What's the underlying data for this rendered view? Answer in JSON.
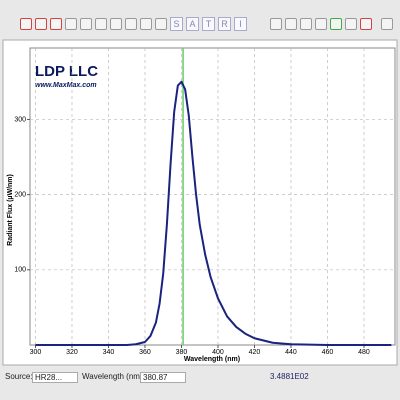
{
  "toolbar": {
    "letters": [
      "S",
      "A",
      "T",
      "R",
      "I"
    ]
  },
  "chart_data": {
    "type": "line",
    "logo": "LDP LLC",
    "logo_url": "www.MaxMax.com",
    "x_label": "Wavelength (nm)",
    "y_label": "Radiant Flux (µW/nm)",
    "xlim": [
      297,
      497
    ],
    "ylim": [
      0,
      395
    ],
    "xticks": [
      300,
      320,
      340,
      360,
      380,
      400,
      420,
      440,
      460,
      480
    ],
    "yticks": [
      100,
      200,
      300
    ],
    "grid": true,
    "cursor_x": 380.87,
    "cursor_color": "#66cc66",
    "series": [
      {
        "color": "#1a237e",
        "x": [
          300,
          320,
          340,
          350,
          355,
          360,
          363,
          366,
          368,
          370,
          372,
          374,
          376,
          378,
          380,
          382,
          384,
          386,
          388,
          390,
          393,
          396,
          400,
          405,
          410,
          415,
          420,
          430,
          440,
          460,
          480,
          495
        ],
        "values": [
          0,
          0,
          0,
          0,
          1,
          4,
          12,
          30,
          55,
          95,
          160,
          240,
          310,
          345,
          350,
          340,
          305,
          250,
          200,
          160,
          120,
          90,
          62,
          38,
          24,
          15,
          9,
          3,
          1,
          0,
          0,
          0
        ]
      }
    ]
  },
  "status_bar": {
    "source_label": "Source:",
    "source": "HR28...",
    "wavelength_label": "Wavelength (nm):",
    "reading": "3.4881E02"
  }
}
